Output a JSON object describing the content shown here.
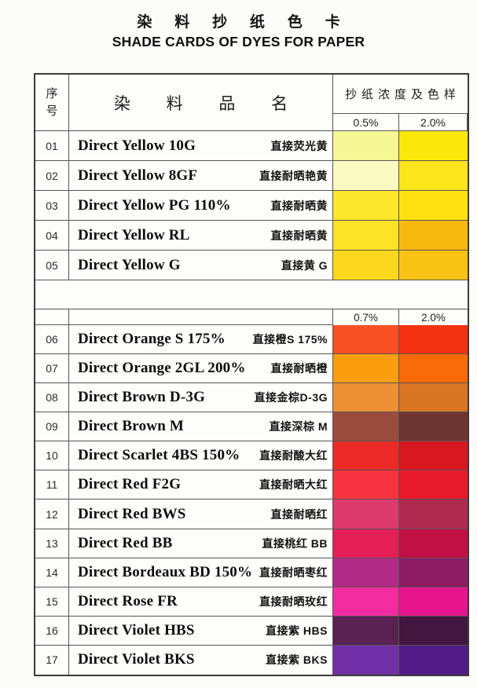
{
  "titles": {
    "zh": "染 料 抄 纸 色 卡",
    "en": "SHADE CARDS OF DYES FOR PAPER"
  },
  "table": {
    "header": {
      "index_label": "序号",
      "name_label": "染 料 品 名",
      "swatch_label": "抄 纸 浓 度 及 色 样"
    },
    "group1": {
      "concentrations": [
        "0.5%",
        "2.0%"
      ],
      "rows": [
        {
          "no": "01",
          "name_en": "Direct Yellow 10G",
          "name_zh": "直接荧光黄",
          "swatch_low": "#f5f794",
          "swatch_high": "#fbe70a"
        },
        {
          "no": "02",
          "name_en": "Direct Yellow 8GF",
          "name_zh": "直接耐晒艳黄",
          "swatch_low": "#fafbc2",
          "swatch_high": "#fee41b"
        },
        {
          "no": "03",
          "name_en": "Direct Yellow PG 110%",
          "name_zh": "直接耐晒黄",
          "swatch_low": "#fee72b",
          "swatch_high": "#fee112"
        },
        {
          "no": "04",
          "name_en": "Direct Yellow RL",
          "name_zh": "直接耐晒黄",
          "swatch_low": "#fee324",
          "swatch_high": "#f7b90f"
        },
        {
          "no": "05",
          "name_en": "Direct Yellow G",
          "name_zh": "直接黄 G",
          "swatch_low": "#fbd81c",
          "swatch_high": "#fac212"
        }
      ]
    },
    "group2": {
      "concentrations": [
        "0.7%",
        "2.0%"
      ],
      "rows": [
        {
          "no": "06",
          "name_en": "Direct Orange S 175%",
          "name_zh": "直接橙S 175%",
          "swatch_low": "#f94f23",
          "swatch_high": "#f43211"
        },
        {
          "no": "07",
          "name_en": "Direct Orange 2GL 200%",
          "name_zh": "直接耐晒橙",
          "swatch_low": "#fb9e0e",
          "swatch_high": "#f96b06"
        },
        {
          "no": "08",
          "name_en": "Direct Brown D-3G",
          "name_zh": "直接金棕D-3G",
          "swatch_low": "#ee8e35",
          "swatch_high": "#d97421"
        },
        {
          "no": "09",
          "name_en": "Direct Brown M",
          "name_zh": "直接深棕 M",
          "swatch_low": "#9c4c3e",
          "swatch_high": "#6e3530"
        },
        {
          "no": "10",
          "name_en": "Direct Scarlet 4BS 150%",
          "name_zh": "直接耐酸大红",
          "swatch_low": "#ec2b28",
          "swatch_high": "#d8181f"
        },
        {
          "no": "11",
          "name_en": "Direct Red F2G",
          "name_zh": "直接耐晒大红",
          "swatch_low": "#f7333f",
          "swatch_high": "#e91a2b"
        },
        {
          "no": "12",
          "name_en": "Direct Red BWS",
          "name_zh": "直接耐晒红",
          "swatch_low": "#dd3a6d",
          "swatch_high": "#ae2a4f"
        },
        {
          "no": "13",
          "name_en": "Direct Red BB",
          "name_zh": "直接桃红 BB",
          "swatch_low": "#e51f58",
          "swatch_high": "#c11044"
        },
        {
          "no": "14",
          "name_en": "Direct Bordeaux BD 150%",
          "name_zh": "直接耐晒枣红",
          "swatch_low": "#b12b86",
          "swatch_high": "#8c1d62"
        },
        {
          "no": "15",
          "name_en": "Direct Rose FR",
          "name_zh": "直接耐晒玫红",
          "swatch_low": "#f32da0",
          "swatch_high": "#e7158d"
        },
        {
          "no": "16",
          "name_en": "Direct Violet HBS",
          "name_zh": "直接紫 HBS",
          "swatch_low": "#5a2153",
          "swatch_high": "#421741"
        },
        {
          "no": "17",
          "name_en": "Direct Violet BKS",
          "name_zh": "直接紫 BKS",
          "swatch_low": "#7030a6",
          "swatch_high": "#521c88"
        }
      ]
    }
  }
}
